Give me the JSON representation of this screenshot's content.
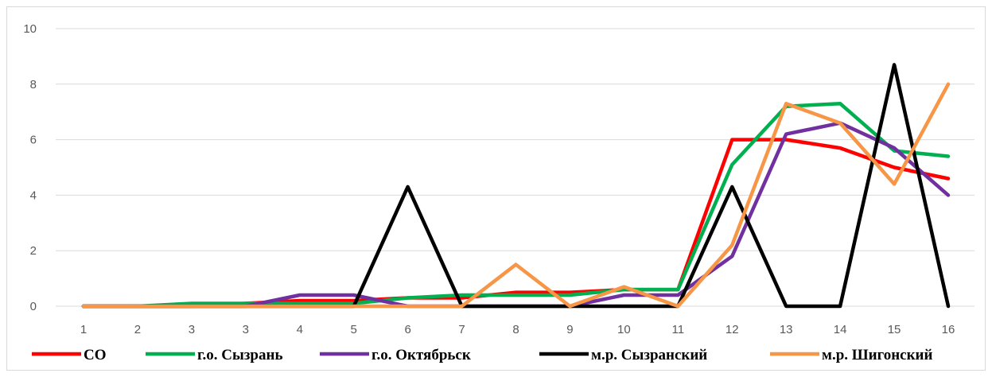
{
  "chart_data": {
    "type": "line",
    "x": [
      "1",
      "2",
      "3",
      "3",
      "4",
      "5",
      "6",
      "7",
      "8",
      "9",
      "10",
      "11",
      "12",
      "13",
      "14",
      "15",
      "16"
    ],
    "ylim": [
      0,
      10
    ],
    "yticks": [
      0,
      2,
      4,
      6,
      8,
      10
    ],
    "grid": true,
    "legend_position": "bottom",
    "series": [
      {
        "name": "СО",
        "color": "#ff0000",
        "values": [
          0,
          0,
          0,
          0.1,
          0.2,
          0.2,
          0.3,
          0.3,
          0.5,
          0.5,
          0.6,
          0.6,
          6.0,
          6.0,
          5.7,
          5.0,
          4.6
        ]
      },
      {
        "name": "г.о. Сызрань",
        "color": "#00b050",
        "values": [
          0,
          0,
          0.1,
          0.1,
          0.1,
          0.1,
          0.3,
          0.4,
          0.4,
          0.4,
          0.6,
          0.6,
          5.1,
          7.2,
          7.3,
          5.6,
          5.4
        ]
      },
      {
        "name": "г.о. Октябрьск",
        "color": "#7030a0",
        "values": [
          0,
          0,
          0,
          0,
          0.4,
          0.4,
          0,
          0,
          0,
          0,
          0.4,
          0.4,
          1.8,
          6.2,
          6.6,
          5.7,
          4.0
        ]
      },
      {
        "name": "м.р. Сызранский",
        "color": "#000000",
        "values": [
          0,
          0,
          0,
          0,
          0,
          0,
          4.3,
          0,
          0,
          0,
          0,
          0,
          4.3,
          0,
          0,
          8.7,
          0
        ]
      },
      {
        "name": "м.р. Шигонский",
        "color": "#f79646",
        "values": [
          0,
          0,
          0,
          0,
          0,
          0,
          0,
          0,
          1.5,
          0,
          0.7,
          0,
          2.2,
          7.3,
          6.6,
          4.4,
          8.0
        ]
      }
    ]
  }
}
